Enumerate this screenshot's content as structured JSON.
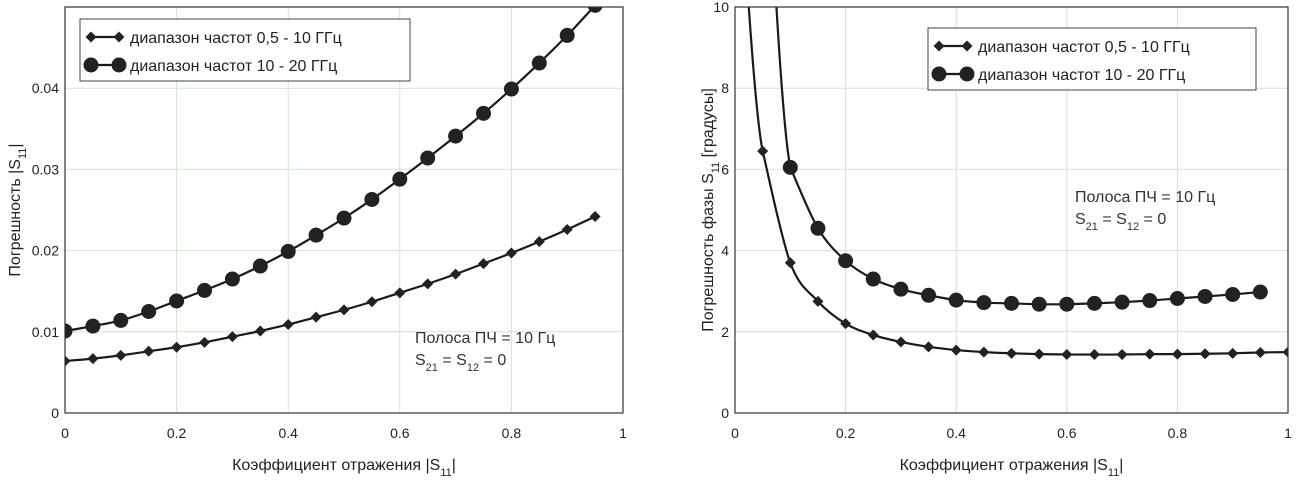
{
  "chart_data": [
    {
      "type": "line",
      "xlabel": "Коэффициент отражения |S11|",
      "ylabel": "Погрешность |S11|",
      "xlim": [
        0,
        1
      ],
      "ylim": [
        0,
        0.05
      ],
      "x_ticks": [
        "0",
        "0.2",
        "0.4",
        "0.6",
        "0.8",
        "1"
      ],
      "y_ticks": [
        "0",
        "0.01",
        "0.02",
        "0.03",
        "0.04"
      ],
      "grid": true,
      "legend_position": "top-left",
      "annotation": [
        "Полоса ПЧ = 10 Гц",
        "S21 = S12 = 0"
      ],
      "series": [
        {
          "name": "диапазон частот 0,5 - 10 ГГц",
          "marker": "diamond",
          "x": [
            0,
            0.05,
            0.1,
            0.15,
            0.2,
            0.25,
            0.3,
            0.35,
            0.4,
            0.45,
            0.5,
            0.55,
            0.6,
            0.65,
            0.7,
            0.75,
            0.8,
            0.85,
            0.9,
            0.95
          ],
          "y": [
            0.0064,
            0.0067,
            0.0071,
            0.0076,
            0.0081,
            0.0087,
            0.0094,
            0.0101,
            0.0109,
            0.0118,
            0.0127,
            0.0137,
            0.0148,
            0.0159,
            0.0171,
            0.0184,
            0.0197,
            0.0211,
            0.0226,
            0.0242
          ]
        },
        {
          "name": "диапазон частот 10 - 20 ГГц",
          "marker": "circle",
          "x": [
            0,
            0.05,
            0.1,
            0.15,
            0.2,
            0.25,
            0.3,
            0.35,
            0.4,
            0.45,
            0.5,
            0.55,
            0.6,
            0.65,
            0.7,
            0.75,
            0.8,
            0.85,
            0.9,
            0.95
          ],
          "y": [
            0.0101,
            0.0107,
            0.0114,
            0.0125,
            0.0138,
            0.0151,
            0.0165,
            0.0181,
            0.0199,
            0.0219,
            0.024,
            0.0263,
            0.0288,
            0.0314,
            0.0341,
            0.0369,
            0.0399,
            0.0431,
            0.0465,
            0.0502
          ]
        }
      ]
    },
    {
      "type": "line",
      "xlabel": "Коэффициент отражения |S11|",
      "ylabel": "Погрешность фазы S11 [градусы]",
      "xlim": [
        0,
        1
      ],
      "ylim": [
        0,
        10
      ],
      "x_ticks": [
        "0",
        "0.2",
        "0.4",
        "0.6",
        "0.8",
        "1"
      ],
      "y_ticks": [
        "0",
        "2",
        "4",
        "6",
        "8",
        "10"
      ],
      "grid": true,
      "legend_position": "top-right",
      "annotation": [
        "Полоса ПЧ = 10 Гц",
        "S21 = S12 = 0"
      ],
      "series": [
        {
          "name": "диапазон частот 0,5 - 10 ГГц",
          "marker": "diamond",
          "x": [
            0.05,
            0.1,
            0.15,
            0.2,
            0.25,
            0.3,
            0.35,
            0.4,
            0.45,
            0.5,
            0.55,
            0.6,
            0.65,
            0.7,
            0.75,
            0.8,
            0.85,
            0.9,
            0.95,
            1.0
          ],
          "y": [
            6.45,
            3.7,
            2.75,
            2.2,
            1.92,
            1.75,
            1.63,
            1.55,
            1.5,
            1.47,
            1.45,
            1.44,
            1.44,
            1.44,
            1.45,
            1.45,
            1.46,
            1.47,
            1.49,
            1.5
          ]
        },
        {
          "name": "диапазон частот 10 - 20 ГГц",
          "marker": "circle",
          "x": [
            0.1,
            0.15,
            0.2,
            0.25,
            0.3,
            0.35,
            0.4,
            0.45,
            0.5,
            0.55,
            0.6,
            0.65,
            0.7,
            0.75,
            0.8,
            0.85,
            0.9,
            0.95
          ],
          "y": [
            6.05,
            4.55,
            3.75,
            3.3,
            3.05,
            2.9,
            2.78,
            2.72,
            2.7,
            2.68,
            2.68,
            2.7,
            2.73,
            2.77,
            2.82,
            2.87,
            2.92,
            2.98
          ]
        }
      ]
    }
  ]
}
